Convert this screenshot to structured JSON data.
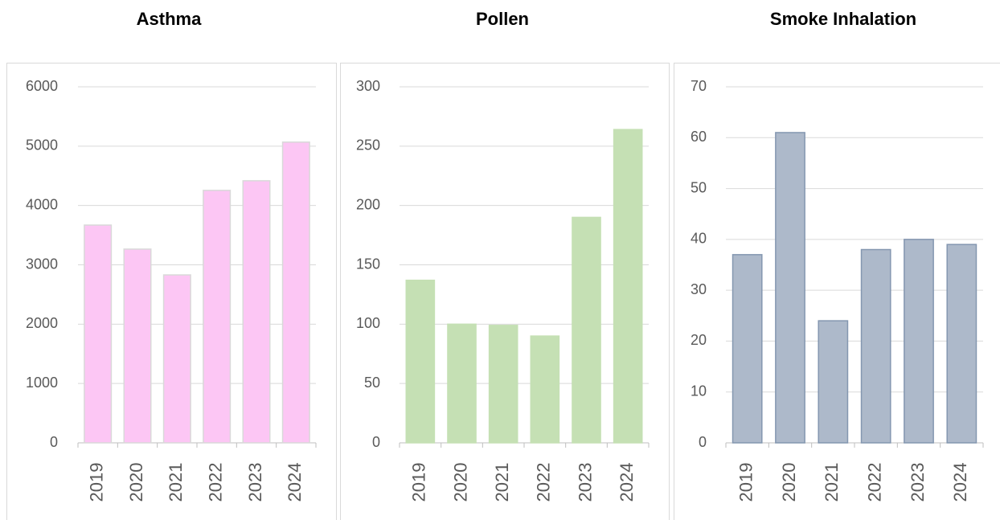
{
  "chart_data": [
    {
      "type": "bar",
      "title": "Asthma",
      "categories": [
        "2019",
        "2020",
        "2021",
        "2022",
        "2023",
        "2024"
      ],
      "values": [
        3670,
        3265,
        2830,
        4255,
        4417,
        5068
      ],
      "color": "#fcc6f4",
      "edge_color": "#d9d9d9",
      "ylim": [
        0,
        6000
      ],
      "yticks": [
        0,
        1000,
        2000,
        3000,
        4000,
        5000,
        6000
      ],
      "grid": true
    },
    {
      "type": "bar",
      "title": "Pollen",
      "categories": [
        "2019",
        "2020",
        "2021",
        "2022",
        "2023",
        "2024"
      ],
      "values": [
        137,
        100,
        99,
        90,
        190,
        264
      ],
      "color": "#c5e0b4",
      "edge_color": "#c5e0b4",
      "ylim": [
        0,
        300
      ],
      "yticks": [
        0,
        50,
        100,
        150,
        200,
        250,
        300
      ],
      "grid": true
    },
    {
      "type": "bar",
      "title": "Smoke Inhalation",
      "categories": [
        "2019",
        "2020",
        "2021",
        "2022",
        "2023",
        "2024"
      ],
      "values": [
        37,
        61,
        24,
        38,
        40,
        39
      ],
      "color": "#adb9ca",
      "edge_color": "#8497b0",
      "ylim": [
        0,
        70
      ],
      "yticks": [
        0,
        10,
        20,
        30,
        40,
        50,
        60,
        70
      ],
      "grid": true
    }
  ]
}
